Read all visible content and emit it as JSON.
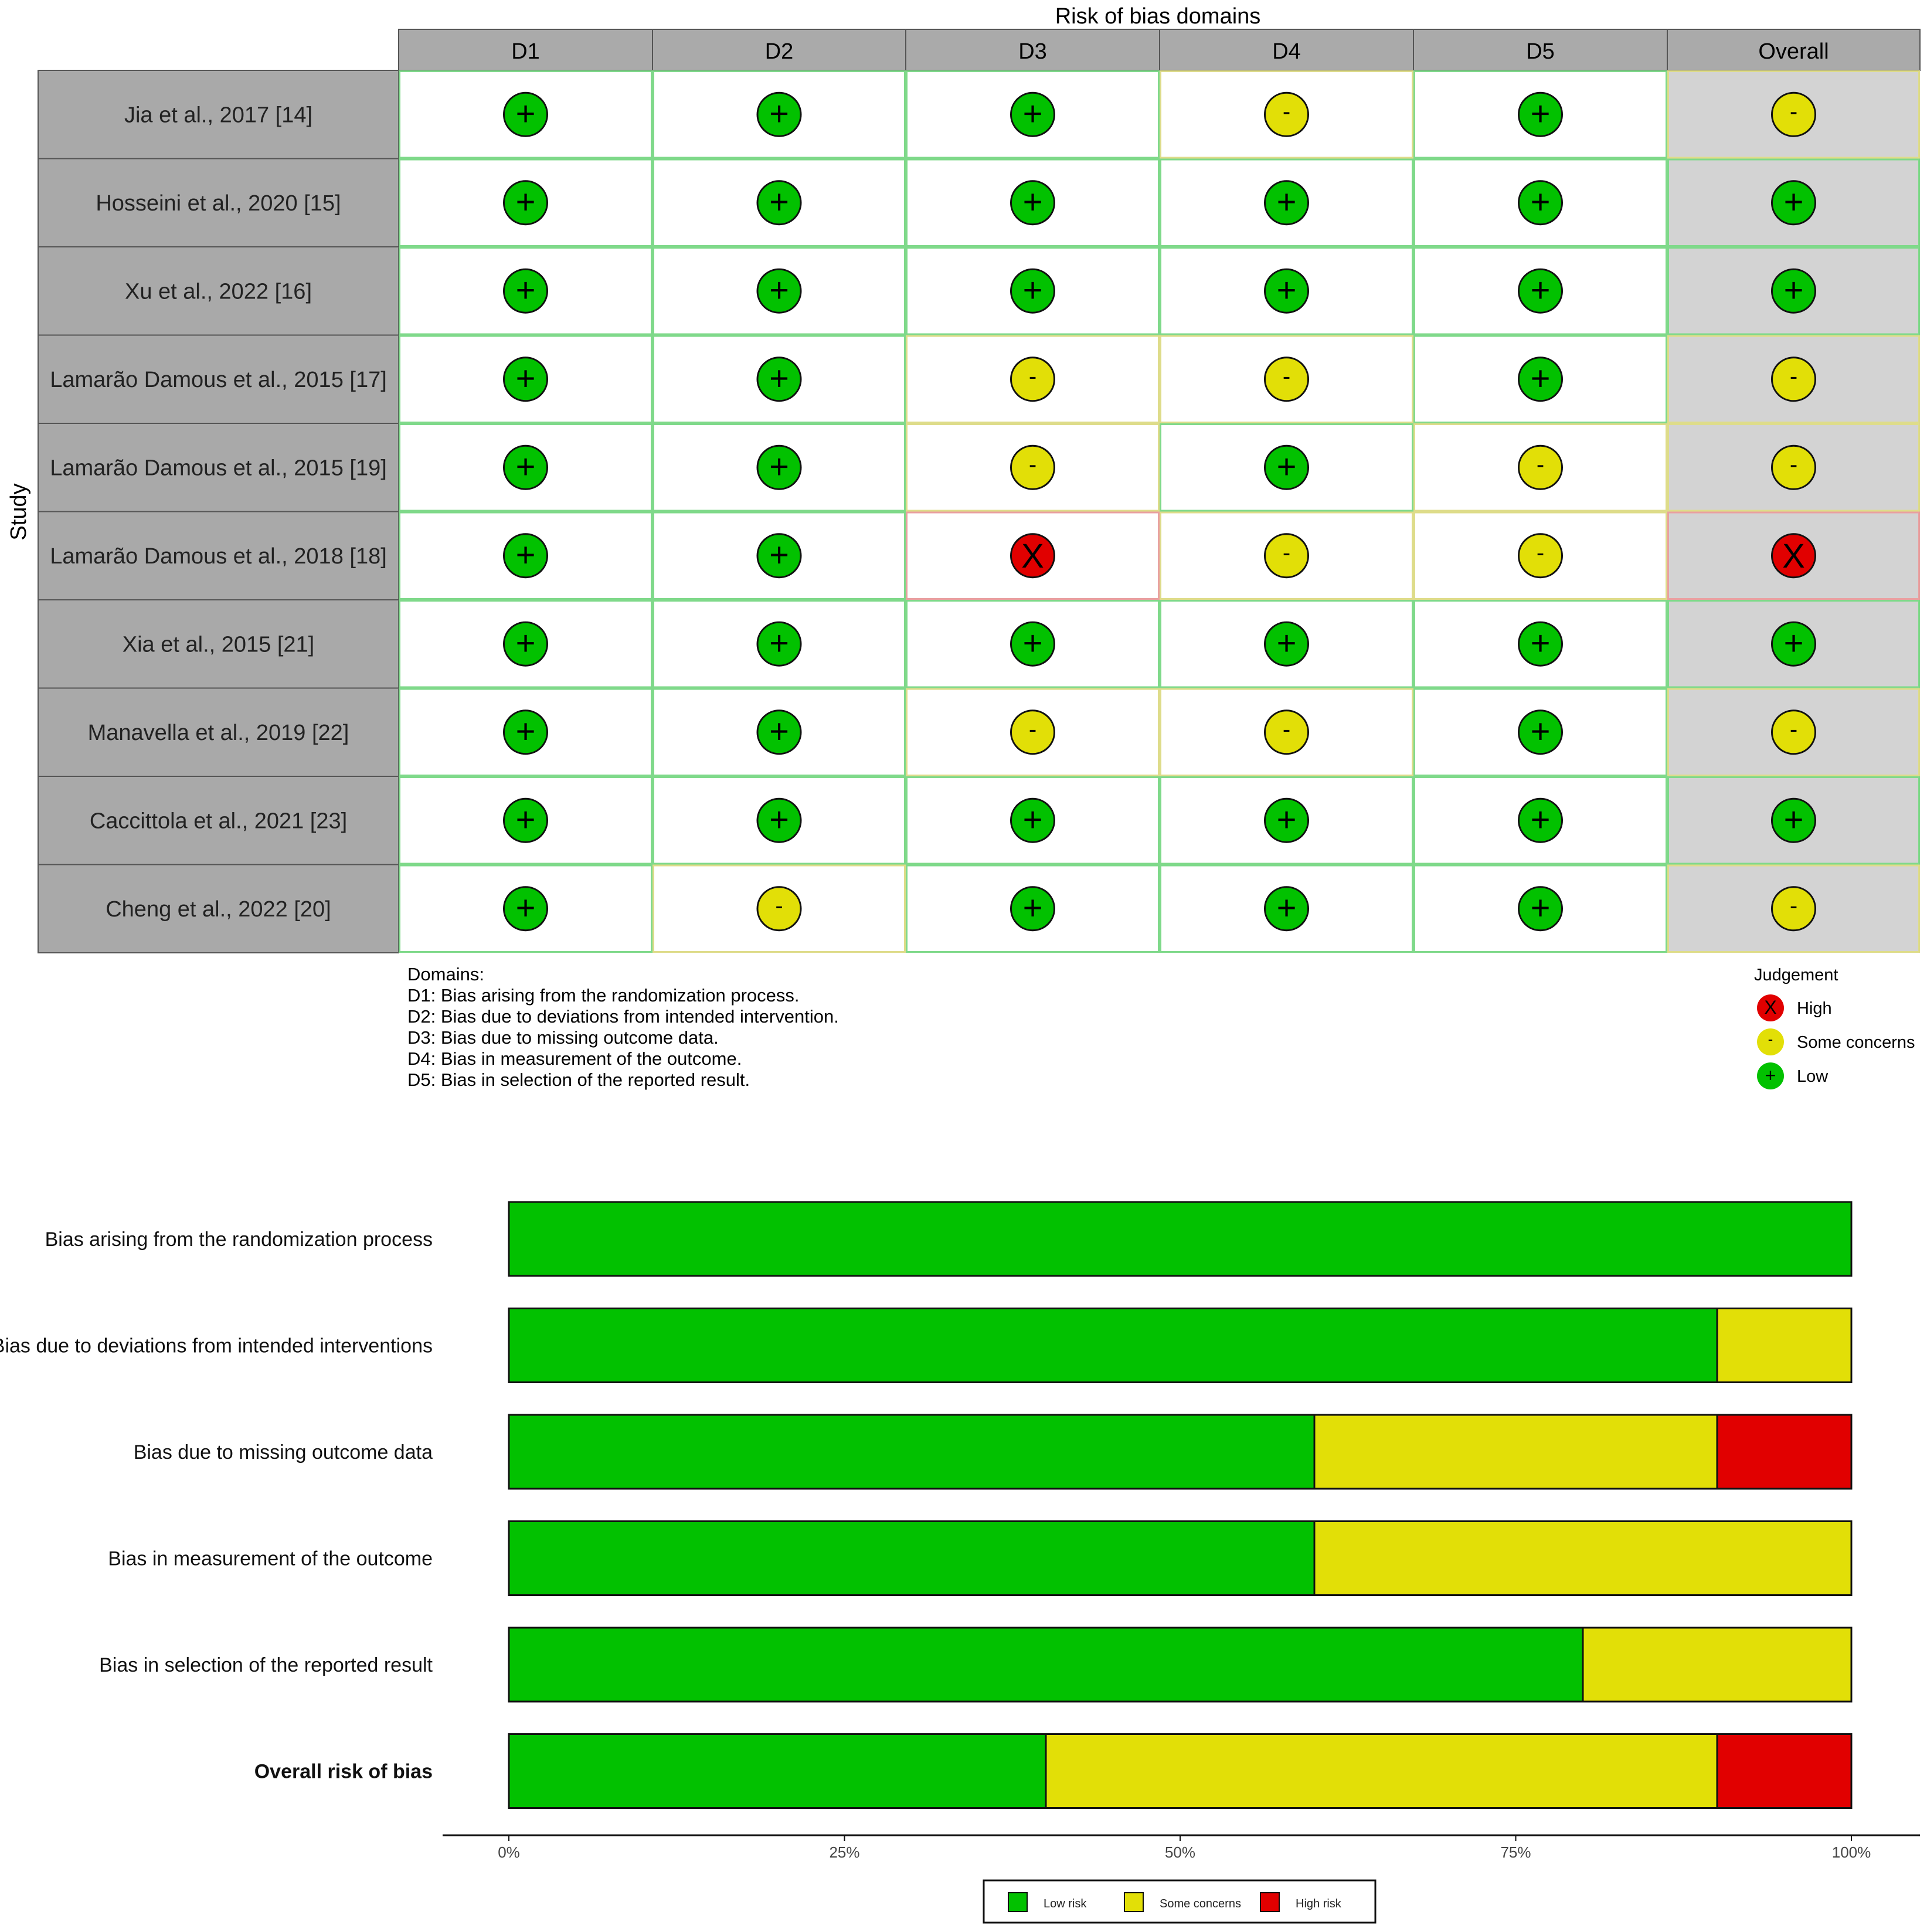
{
  "traffic_light": {
    "title": "Risk of bias domains",
    "y_axis_label": "Study",
    "domains": [
      "D1",
      "D2",
      "D3",
      "D4",
      "D5",
      "Overall"
    ],
    "studies": [
      {
        "name": "Jia et al., 2017 [14]",
        "judgements": [
          "+",
          "+",
          "+",
          "-",
          "+",
          "-"
        ]
      },
      {
        "name": "Hosseini et al., 2020 [15]",
        "judgements": [
          "+",
          "+",
          "+",
          "+",
          "+",
          "+"
        ]
      },
      {
        "name": "Xu et al., 2022 [16]",
        "judgements": [
          "+",
          "+",
          "+",
          "+",
          "+",
          "+"
        ]
      },
      {
        "name": "Lamarão Damous et al., 2015 [17]",
        "judgements": [
          "+",
          "+",
          "-",
          "-",
          "+",
          "-"
        ]
      },
      {
        "name": "Lamarão Damous et al., 2015 [19]",
        "judgements": [
          "+",
          "+",
          "-",
          "+",
          "-",
          "-"
        ]
      },
      {
        "name": "Lamarão Damous et al., 2018 [18]",
        "judgements": [
          "+",
          "+",
          "X",
          "-",
          "-",
          "X"
        ]
      },
      {
        "name": "Xia et al., 2015 [21]",
        "judgements": [
          "+",
          "+",
          "+",
          "+",
          "+",
          "+"
        ]
      },
      {
        "name": "Manavella et al., 2019 [22]",
        "judgements": [
          "+",
          "+",
          "-",
          "-",
          "+",
          "-"
        ]
      },
      {
        "name": "Caccittola et al., 2021 [23]",
        "judgements": [
          "+",
          "+",
          "+",
          "+",
          "+",
          "+"
        ]
      },
      {
        "name": "Cheng et al., 2022 [20]",
        "judgements": [
          "+",
          "-",
          "+",
          "+",
          "+",
          "-"
        ]
      }
    ],
    "domain_notes": {
      "heading": "Domains:",
      "lines": [
        "D1: Bias arising from the randomization process.",
        "D2: Bias due to deviations from intended intervention.",
        "D3: Bias due to missing outcome data.",
        "D4: Bias in measurement of the outcome.",
        "D5: Bias in selection of the reported result."
      ]
    },
    "judgement_legend": {
      "heading": "Judgement",
      "items": [
        {
          "symbol": "X",
          "label": "High"
        },
        {
          "symbol": "-",
          "label": "Some concerns"
        },
        {
          "symbol": "+",
          "label": "Low"
        }
      ]
    },
    "colors": {
      "low": "#02C100",
      "some": "#E2DF07",
      "high": "#E10000",
      "header": "#AAAAAA",
      "study_cell": "#A9A9A9",
      "overall_col": "#D3D3D3"
    }
  },
  "chart_data": {
    "type": "bar",
    "orientation": "horizontal",
    "stacked": true,
    "categories": [
      "Bias arising from the randomization process",
      "Bias due to deviations from intended interventions",
      "Bias due to missing outcome data",
      "Bias in measurement of the outcome",
      "Bias in selection of the reported result",
      "Overall risk of bias"
    ],
    "bold_category": "Overall risk of bias",
    "series": [
      {
        "name": "Low risk",
        "color": "#02C100",
        "values": [
          100,
          90,
          60,
          60,
          80,
          40
        ]
      },
      {
        "name": "Some concerns",
        "color": "#E2DF07",
        "values": [
          0,
          10,
          30,
          40,
          20,
          50
        ]
      },
      {
        "name": "High risk",
        "color": "#E10000",
        "values": [
          0,
          0,
          10,
          0,
          0,
          10
        ]
      }
    ],
    "xlim": [
      0,
      100
    ],
    "x_ticks": [
      "0%",
      "25%",
      "50%",
      "75%",
      "100%"
    ],
    "x_tick_values": [
      0,
      25,
      50,
      75,
      100
    ],
    "legend_position": "bottom",
    "grid": false
  }
}
